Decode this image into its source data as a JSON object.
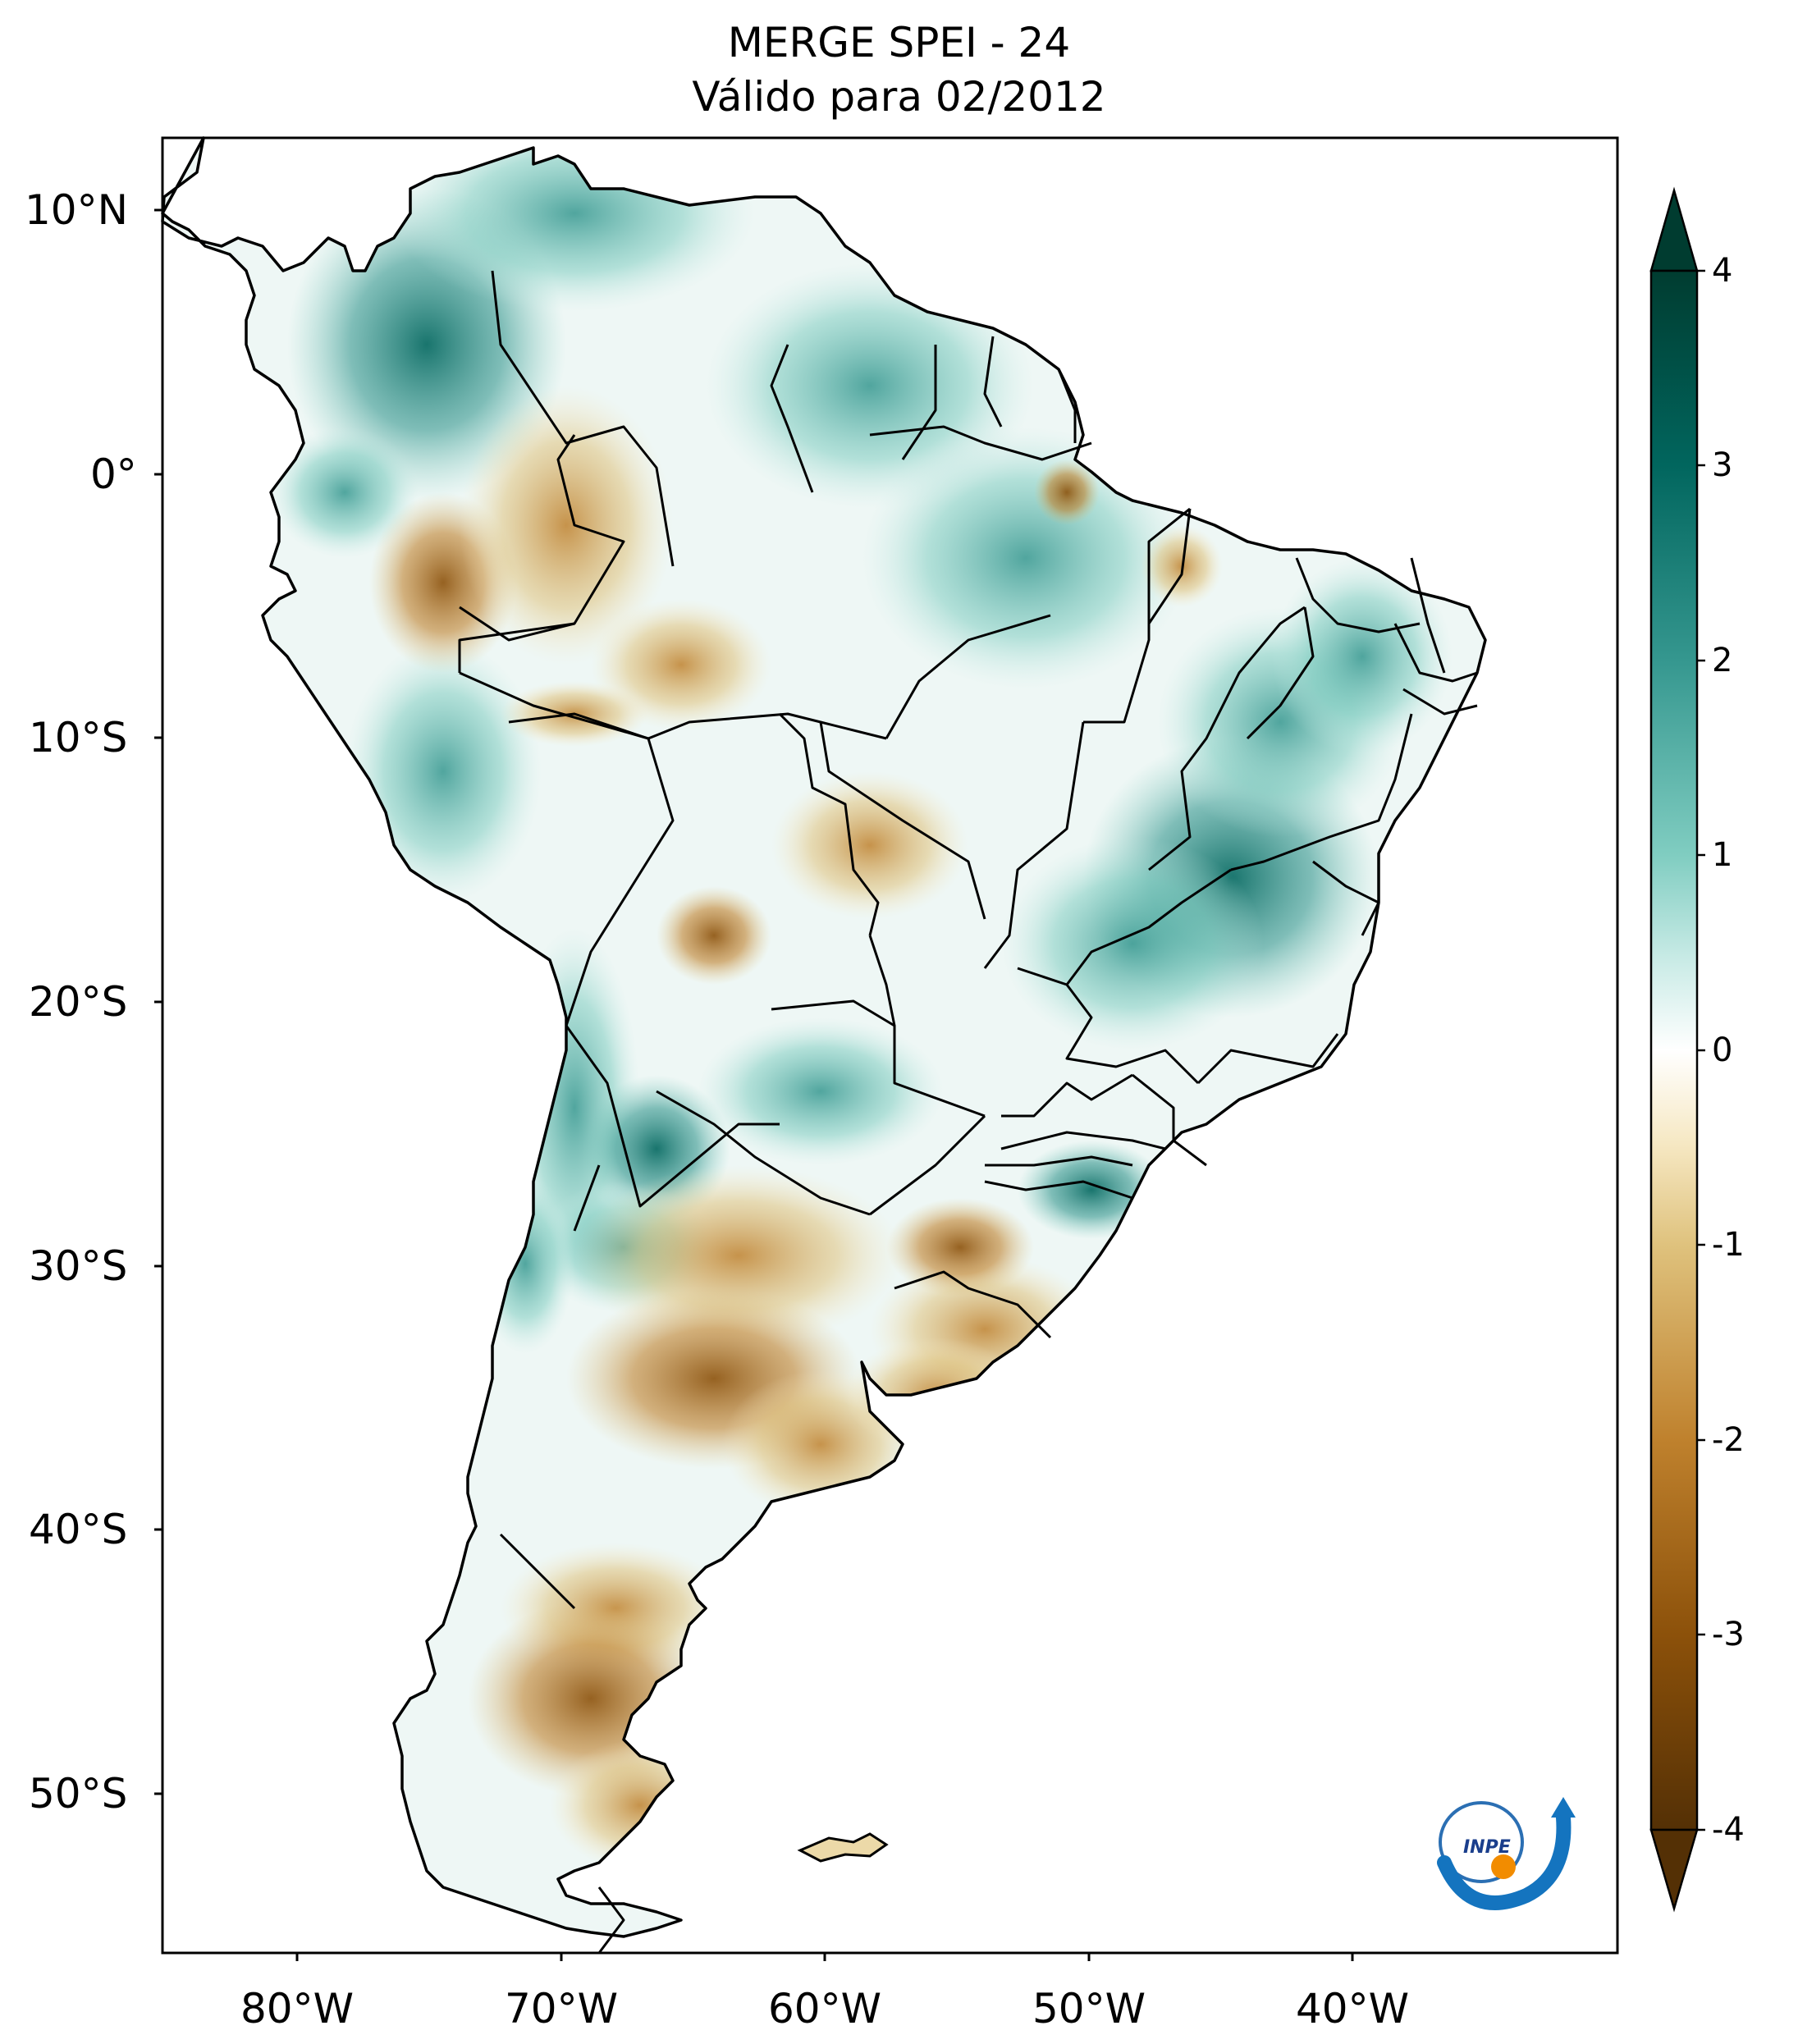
{
  "title": {
    "line1": "MERGE   SPEI - 24",
    "line2": "Válido para 02/2012"
  },
  "map": {
    "region": "South America",
    "variable": "SPEI - 24",
    "lat_range": [
      -56,
      13
    ],
    "lon_range": [
      -85,
      -30
    ],
    "lat_ticks": [
      "10°N",
      "0°",
      "10°S",
      "20°S",
      "30°S",
      "40°S",
      "50°S"
    ],
    "lon_ticks": [
      "80°W",
      "70°W",
      "60°W",
      "50°W",
      "40°W"
    ]
  },
  "colorbar": {
    "min": -4,
    "max": 4,
    "extend": "both",
    "ticks": [
      "4",
      "3",
      "2",
      "1",
      "0",
      "-1",
      "-2",
      "-3",
      "-4"
    ],
    "colors": {
      "-4": "#543005",
      "-3": "#8c510a",
      "-2": "#bf812d",
      "-1": "#dfc27d",
      "-0.5": "#f6e8c3",
      "0": "#ffffff",
      "0.5": "#c7eae5",
      "1": "#80cdc1",
      "2": "#35978f",
      "3": "#01665e",
      "4": "#003c30"
    }
  },
  "logo": {
    "text": "INPE"
  }
}
